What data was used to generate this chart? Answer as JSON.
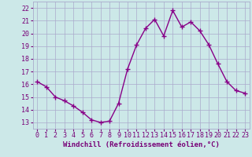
{
  "x": [
    0,
    1,
    2,
    3,
    4,
    5,
    6,
    7,
    8,
    9,
    10,
    11,
    12,
    13,
    14,
    15,
    16,
    17,
    18,
    19,
    20,
    21,
    22,
    23
  ],
  "y": [
    16.2,
    15.8,
    15.0,
    14.7,
    14.3,
    13.8,
    13.2,
    13.0,
    13.1,
    14.5,
    17.2,
    19.1,
    20.4,
    21.1,
    19.8,
    21.8,
    20.5,
    20.9,
    20.2,
    19.1,
    17.6,
    16.2,
    15.5,
    15.3
  ],
  "line_color": "#880088",
  "marker": "+",
  "marker_size": 4,
  "xlabel": "Windchill (Refroidissement éolien,°C)",
  "xlabel_fontsize": 6.5,
  "xlim": [
    -0.5,
    23.5
  ],
  "ylim": [
    12.5,
    22.5
  ],
  "yticks": [
    13,
    14,
    15,
    16,
    17,
    18,
    19,
    20,
    21,
    22
  ],
  "xticks": [
    0,
    1,
    2,
    3,
    4,
    5,
    6,
    7,
    8,
    9,
    10,
    11,
    12,
    13,
    14,
    15,
    16,
    17,
    18,
    19,
    20,
    21,
    22,
    23
  ],
  "background_color": "#cce8e8",
  "grid_color": "#aaaacc",
  "tick_color": "#770077",
  "tick_fontsize": 6.0,
  "line_width": 1.0
}
